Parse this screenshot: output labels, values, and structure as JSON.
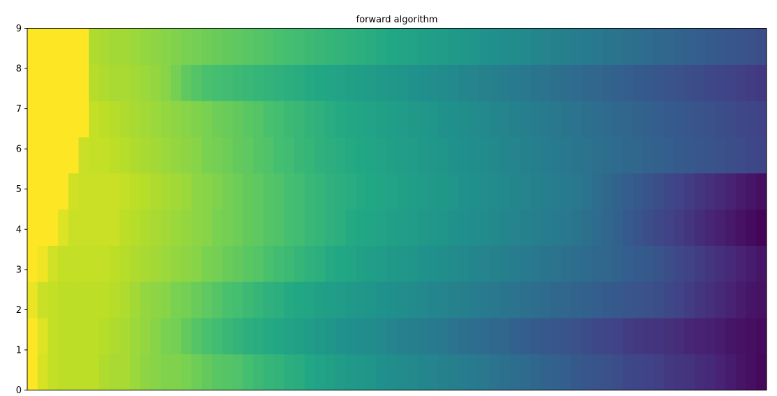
{
  "chart_data": {
    "type": "heatmap",
    "title": "forward algorithm",
    "xlabel": "",
    "ylabel": "",
    "x_ticks_visible": false,
    "ylim": [
      0,
      9
    ],
    "y_ticks": [
      "0",
      "1",
      "2",
      "3",
      "4",
      "5",
      "6",
      "7",
      "8",
      "9"
    ],
    "colormap": "viridis",
    "value_range": [
      0,
      1
    ],
    "n_columns": 72,
    "rows_bottom_to_top": [
      [
        1.0,
        0.94,
        0.91,
        0.9,
        0.9,
        0.9,
        0.9,
        0.88,
        0.87,
        0.87,
        0.85,
        0.83,
        0.82,
        0.81,
        0.81,
        0.8,
        0.78,
        0.76,
        0.74,
        0.73,
        0.72,
        0.7,
        0.68,
        0.66,
        0.65,
        0.63,
        0.62,
        0.6,
        0.58,
        0.57,
        0.55,
        0.54,
        0.53,
        0.52,
        0.5,
        0.49,
        0.48,
        0.47,
        0.46,
        0.45,
        0.44,
        0.43,
        0.42,
        0.41,
        0.4,
        0.38,
        0.37,
        0.36,
        0.35,
        0.34,
        0.32,
        0.31,
        0.3,
        0.28,
        0.27,
        0.26,
        0.25,
        0.24,
        0.22,
        0.21,
        0.2,
        0.19,
        0.17,
        0.16,
        0.15,
        0.13,
        0.12,
        0.1,
        0.08,
        0.06,
        0.04,
        0.02
      ],
      [
        1.0,
        0.95,
        0.91,
        0.9,
        0.9,
        0.9,
        0.9,
        0.89,
        0.88,
        0.87,
        0.85,
        0.84,
        0.82,
        0.8,
        0.79,
        0.76,
        0.73,
        0.71,
        0.69,
        0.67,
        0.65,
        0.63,
        0.62,
        0.61,
        0.6,
        0.58,
        0.57,
        0.55,
        0.54,
        0.52,
        0.51,
        0.5,
        0.49,
        0.48,
        0.47,
        0.45,
        0.44,
        0.43,
        0.42,
        0.41,
        0.4,
        0.38,
        0.37,
        0.36,
        0.35,
        0.34,
        0.33,
        0.31,
        0.3,
        0.29,
        0.28,
        0.27,
        0.26,
        0.25,
        0.23,
        0.22,
        0.21,
        0.2,
        0.18,
        0.17,
        0.16,
        0.15,
        0.14,
        0.13,
        0.11,
        0.1,
        0.09,
        0.08,
        0.06,
        0.05,
        0.04,
        0.03
      ],
      [
        0.97,
        0.92,
        0.91,
        0.9,
        0.9,
        0.9,
        0.9,
        0.9,
        0.89,
        0.88,
        0.86,
        0.84,
        0.83,
        0.82,
        0.8,
        0.79,
        0.77,
        0.75,
        0.73,
        0.71,
        0.7,
        0.68,
        0.66,
        0.64,
        0.63,
        0.61,
        0.6,
        0.59,
        0.57,
        0.56,
        0.55,
        0.54,
        0.53,
        0.52,
        0.51,
        0.5,
        0.49,
        0.48,
        0.47,
        0.46,
        0.45,
        0.44,
        0.43,
        0.42,
        0.41,
        0.4,
        0.39,
        0.38,
        0.37,
        0.36,
        0.35,
        0.34,
        0.33,
        0.32,
        0.31,
        0.3,
        0.29,
        0.28,
        0.27,
        0.26,
        0.25,
        0.24,
        0.22,
        0.2,
        0.18,
        0.16,
        0.14,
        0.12,
        0.1,
        0.08,
        0.06,
        0.05
      ],
      [
        1.0,
        0.98,
        0.93,
        0.91,
        0.91,
        0.91,
        0.91,
        0.91,
        0.9,
        0.89,
        0.88,
        0.87,
        0.86,
        0.85,
        0.84,
        0.83,
        0.82,
        0.8,
        0.79,
        0.77,
        0.76,
        0.74,
        0.73,
        0.71,
        0.69,
        0.68,
        0.66,
        0.64,
        0.63,
        0.61,
        0.6,
        0.59,
        0.57,
        0.56,
        0.55,
        0.54,
        0.53,
        0.52,
        0.51,
        0.5,
        0.49,
        0.48,
        0.47,
        0.46,
        0.45,
        0.44,
        0.43,
        0.42,
        0.41,
        0.4,
        0.39,
        0.38,
        0.37,
        0.36,
        0.35,
        0.34,
        0.33,
        0.32,
        0.3,
        0.29,
        0.28,
        0.26,
        0.24,
        0.22,
        0.2,
        0.18,
        0.16,
        0.14,
        0.12,
        0.1,
        0.08,
        0.06
      ],
      [
        1.0,
        1.0,
        1.0,
        0.95,
        0.92,
        0.92,
        0.92,
        0.92,
        0.92,
        0.9,
        0.89,
        0.88,
        0.87,
        0.86,
        0.85,
        0.84,
        0.83,
        0.82,
        0.8,
        0.79,
        0.78,
        0.76,
        0.75,
        0.73,
        0.72,
        0.7,
        0.69,
        0.67,
        0.66,
        0.64,
        0.63,
        0.61,
        0.6,
        0.59,
        0.58,
        0.57,
        0.56,
        0.55,
        0.54,
        0.53,
        0.52,
        0.51,
        0.5,
        0.49,
        0.48,
        0.47,
        0.46,
        0.45,
        0.44,
        0.43,
        0.42,
        0.41,
        0.4,
        0.39,
        0.37,
        0.35,
        0.33,
        0.31,
        0.29,
        0.26,
        0.24,
        0.22,
        0.2,
        0.18,
        0.16,
        0.13,
        0.11,
        0.09,
        0.07,
        0.05,
        0.03,
        0.01
      ],
      [
        1.0,
        1.0,
        1.0,
        1.0,
        0.93,
        0.92,
        0.92,
        0.92,
        0.92,
        0.91,
        0.9,
        0.89,
        0.88,
        0.87,
        0.86,
        0.85,
        0.83,
        0.82,
        0.81,
        0.79,
        0.78,
        0.76,
        0.75,
        0.73,
        0.72,
        0.7,
        0.69,
        0.67,
        0.66,
        0.64,
        0.63,
        0.62,
        0.61,
        0.6,
        0.59,
        0.58,
        0.57,
        0.56,
        0.55,
        0.54,
        0.53,
        0.52,
        0.51,
        0.5,
        0.49,
        0.48,
        0.47,
        0.46,
        0.45,
        0.44,
        0.43,
        0.42,
        0.41,
        0.4,
        0.38,
        0.36,
        0.34,
        0.32,
        0.3,
        0.28,
        0.26,
        0.24,
        0.22,
        0.2,
        0.18,
        0.16,
        0.14,
        0.12,
        0.1,
        0.08,
        0.06,
        0.04
      ],
      [
        1.0,
        1.0,
        1.0,
        1.0,
        1.0,
        0.92,
        0.91,
        0.91,
        0.9,
        0.89,
        0.88,
        0.87,
        0.86,
        0.85,
        0.84,
        0.83,
        0.82,
        0.8,
        0.79,
        0.78,
        0.76,
        0.75,
        0.73,
        0.72,
        0.7,
        0.69,
        0.67,
        0.66,
        0.64,
        0.63,
        0.62,
        0.61,
        0.6,
        0.59,
        0.58,
        0.57,
        0.56,
        0.55,
        0.54,
        0.53,
        0.52,
        0.51,
        0.5,
        0.49,
        0.48,
        0.47,
        0.46,
        0.45,
        0.44,
        0.43,
        0.42,
        0.41,
        0.4,
        0.39,
        0.38,
        0.37,
        0.36,
        0.35,
        0.34,
        0.33,
        0.32,
        0.31,
        0.3,
        0.29,
        0.28,
        0.27,
        0.26,
        0.25,
        0.24,
        0.23,
        0.22,
        0.21
      ],
      [
        1.0,
        1.0,
        1.0,
        1.0,
        1.0,
        1.0,
        0.91,
        0.9,
        0.89,
        0.88,
        0.87,
        0.86,
        0.85,
        0.84,
        0.83,
        0.82,
        0.81,
        0.8,
        0.78,
        0.77,
        0.76,
        0.74,
        0.73,
        0.71,
        0.7,
        0.68,
        0.67,
        0.65,
        0.64,
        0.62,
        0.61,
        0.6,
        0.59,
        0.58,
        0.57,
        0.56,
        0.55,
        0.54,
        0.53,
        0.52,
        0.51,
        0.5,
        0.49,
        0.48,
        0.47,
        0.46,
        0.45,
        0.44,
        0.43,
        0.42,
        0.41,
        0.4,
        0.39,
        0.38,
        0.37,
        0.36,
        0.35,
        0.34,
        0.33,
        0.32,
        0.31,
        0.3,
        0.29,
        0.28,
        0.27,
        0.26,
        0.25,
        0.24,
        0.23,
        0.22,
        0.21,
        0.2
      ],
      [
        1.0,
        1.0,
        1.0,
        1.0,
        1.0,
        1.0,
        0.89,
        0.88,
        0.87,
        0.87,
        0.86,
        0.85,
        0.84,
        0.82,
        0.79,
        0.75,
        0.73,
        0.71,
        0.7,
        0.69,
        0.68,
        0.67,
        0.66,
        0.65,
        0.64,
        0.63,
        0.62,
        0.61,
        0.6,
        0.59,
        0.58,
        0.57,
        0.56,
        0.55,
        0.54,
        0.53,
        0.52,
        0.51,
        0.5,
        0.49,
        0.48,
        0.47,
        0.46,
        0.45,
        0.44,
        0.43,
        0.42,
        0.41,
        0.4,
        0.39,
        0.38,
        0.37,
        0.36,
        0.35,
        0.34,
        0.33,
        0.32,
        0.31,
        0.3,
        0.29,
        0.28,
        0.27,
        0.26,
        0.25,
        0.24,
        0.23,
        0.22,
        0.21,
        0.2,
        0.19,
        0.18,
        0.17
      ],
      [
        1.0,
        1.0,
        1.0,
        1.0,
        1.0,
        1.0,
        0.88,
        0.87,
        0.86,
        0.86,
        0.85,
        0.84,
        0.83,
        0.82,
        0.81,
        0.8,
        0.79,
        0.78,
        0.77,
        0.76,
        0.75,
        0.74,
        0.73,
        0.72,
        0.71,
        0.7,
        0.69,
        0.68,
        0.67,
        0.66,
        0.65,
        0.64,
        0.63,
        0.62,
        0.61,
        0.6,
        0.59,
        0.58,
        0.57,
        0.56,
        0.55,
        0.54,
        0.53,
        0.52,
        0.51,
        0.5,
        0.49,
        0.48,
        0.47,
        0.46,
        0.45,
        0.44,
        0.43,
        0.42,
        0.41,
        0.4,
        0.39,
        0.38,
        0.37,
        0.36,
        0.35,
        0.34,
        0.33,
        0.32,
        0.31,
        0.3,
        0.29,
        0.28,
        0.27,
        0.26,
        0.25,
        0.24
      ]
    ]
  }
}
